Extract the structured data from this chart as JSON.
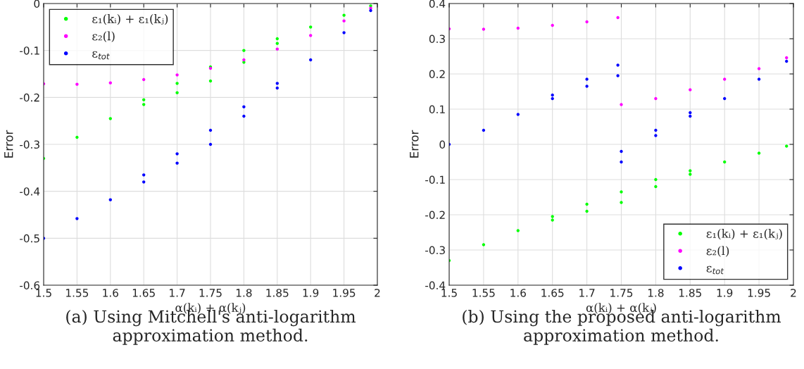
{
  "chart_data": [
    {
      "type": "scatter",
      "xlabel": "α(kᵢ) + α(kⱼ)",
      "ylabel": "Error",
      "xlim": [
        1.5,
        2
      ],
      "ylim": [
        -0.6,
        0
      ],
      "xticks": [
        1.5,
        1.55,
        1.6,
        1.65,
        1.7,
        1.75,
        1.8,
        1.85,
        1.9,
        1.95,
        2
      ],
      "yticks": [
        -0.6,
        -0.5,
        -0.4,
        -0.3,
        -0.2,
        -0.1,
        0
      ],
      "grid": true,
      "legend": "top left",
      "marker": "circle",
      "annotations": [
        "(a) Using Mitchell's anti-logarithm approximation method."
      ],
      "series": [
        {
          "name": "ε₁(kᵢ) + ε₁(kⱼ)",
          "color": "#00ff00",
          "x": [
            1.5,
            1.55,
            1.6,
            1.65,
            1.65,
            1.7,
            1.7,
            1.75,
            1.75,
            1.8,
            1.8,
            1.85,
            1.85,
            1.9,
            1.95,
            1.99
          ],
          "values": [
            -0.33,
            -0.285,
            -0.245,
            -0.215,
            -0.205,
            -0.19,
            -0.17,
            -0.165,
            -0.135,
            -0.125,
            -0.1,
            -0.085,
            -0.075,
            -0.05,
            -0.025,
            -0.005
          ]
        },
        {
          "name": "ε₂(l)",
          "color": "#ff00ff",
          "x": [
            1.5,
            1.55,
            1.6,
            1.65,
            1.7,
            1.75,
            1.8,
            1.85,
            1.9,
            1.95,
            1.99
          ],
          "values": [
            -0.171,
            -0.172,
            -0.169,
            -0.162,
            -0.152,
            -0.138,
            -0.12,
            -0.097,
            -0.068,
            -0.037,
            -0.01
          ]
        },
        {
          "name": "ε$_{tot}$",
          "color": "#0000ff",
          "x": [
            1.5,
            1.55,
            1.6,
            1.65,
            1.65,
            1.7,
            1.7,
            1.75,
            1.75,
            1.8,
            1.8,
            1.85,
            1.85,
            1.9,
            1.95,
            1.99
          ],
          "values": [
            -0.5,
            -0.458,
            -0.418,
            -0.38,
            -0.365,
            -0.34,
            -0.32,
            -0.3,
            -0.27,
            -0.24,
            -0.22,
            -0.18,
            -0.17,
            -0.12,
            -0.062,
            -0.015
          ]
        }
      ]
    },
    {
      "type": "scatter",
      "xlabel": "α(kᵢ) + α(kⱼ)",
      "ylabel": "Error",
      "xlim": [
        1.5,
        2
      ],
      "ylim": [
        -0.4,
        0.4
      ],
      "xticks": [
        1.5,
        1.55,
        1.6,
        1.65,
        1.7,
        1.75,
        1.8,
        1.85,
        1.9,
        1.95,
        2
      ],
      "yticks": [
        -0.4,
        -0.3,
        -0.2,
        -0.1,
        0,
        0.1,
        0.2,
        0.3,
        0.4
      ],
      "grid": true,
      "legend": "bottom right",
      "marker": "circle",
      "annotations": [
        "(b) Using the proposed anti-logarithm approximation method."
      ],
      "series": [
        {
          "name": "ε₁(kᵢ) + ε₁(kⱼ)",
          "color": "#00ff00",
          "x": [
            1.5,
            1.55,
            1.6,
            1.65,
            1.65,
            1.7,
            1.7,
            1.75,
            1.75,
            1.8,
            1.8,
            1.85,
            1.85,
            1.9,
            1.95,
            1.99
          ],
          "values": [
            -0.33,
            -0.285,
            -0.245,
            -0.215,
            -0.205,
            -0.19,
            -0.17,
            -0.165,
            -0.135,
            -0.12,
            -0.1,
            -0.085,
            -0.075,
            -0.05,
            -0.025,
            -0.005
          ]
        },
        {
          "name": "ε₂(l)",
          "color": "#ff00ff",
          "x": [
            1.5,
            1.55,
            1.6,
            1.65,
            1.7,
            1.745,
            1.75,
            1.8,
            1.85,
            1.9,
            1.95,
            1.99
          ],
          "values": [
            0.328,
            0.327,
            0.33,
            0.338,
            0.348,
            0.36,
            0.113,
            0.13,
            0.155,
            0.185,
            0.215,
            0.246
          ]
        },
        {
          "name": "ε$_{tot}$",
          "color": "#0000ff",
          "x": [
            1.5,
            1.55,
            1.6,
            1.65,
            1.65,
            1.7,
            1.7,
            1.745,
            1.745,
            1.75,
            1.75,
            1.8,
            1.8,
            1.85,
            1.85,
            1.9,
            1.95,
            1.99
          ],
          "values": [
            0.0,
            0.04,
            0.085,
            0.13,
            0.14,
            0.165,
            0.185,
            0.195,
            0.225,
            -0.05,
            -0.02,
            0.025,
            0.04,
            0.08,
            0.09,
            0.13,
            0.185,
            0.236
          ]
        }
      ]
    }
  ]
}
